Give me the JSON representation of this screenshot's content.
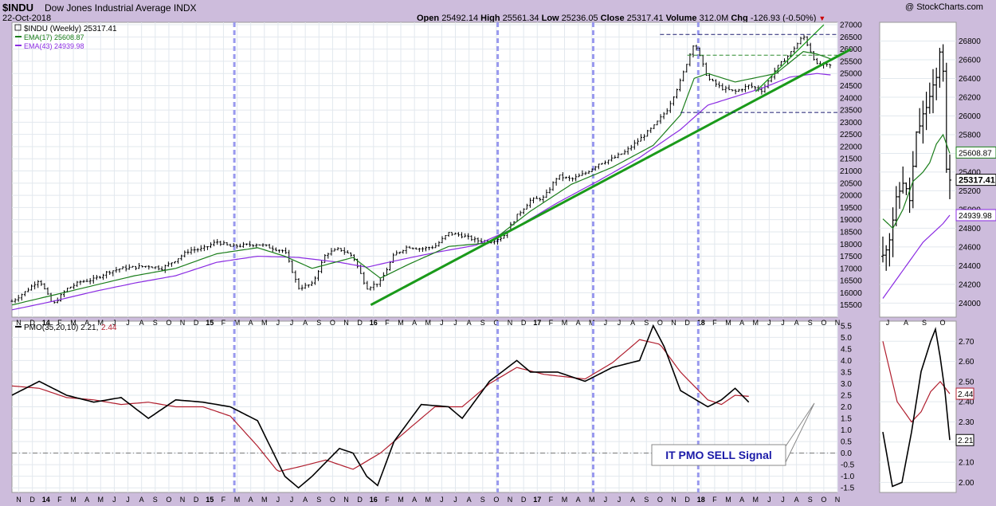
{
  "header": {
    "symbol": "$INDU",
    "name": "Dow Jones Industrial Average",
    "exchange": "INDX",
    "date": "22-Oct-2018",
    "copyright": "@ StockCharts.com",
    "ohlc": {
      "open_label": "Open",
      "open": "25492.14",
      "high_label": "High",
      "high": "25561.34",
      "low_label": "Low",
      "low": "25236.05",
      "close_label": "Close",
      "close": "25317.41",
      "volume_label": "Volume",
      "volume": "312.0M",
      "chg_label": "Chg",
      "chg": "-126.93 (-0.50%)"
    }
  },
  "colors": {
    "background": "#cdbcdc",
    "panel": "#ffffff",
    "ema17": "#1a7d1a",
    "ema43": "#8a2be2",
    "trend": "#1a9a1a",
    "pmo": "#000000",
    "pmo_signal": "#b01e2e",
    "vline": "#9999ee",
    "resistance": "#1a1a6e",
    "green_dash": "#2e8b2e",
    "callout_text": "#1a1aa8",
    "chg_marker": "#cc0000"
  },
  "chart_data": [
    {
      "type": "line",
      "title": "$INDU (Weekly) 25317.41",
      "ylim": [
        15000,
        27100
      ],
      "y_ticks": [
        15500,
        16000,
        16500,
        17000,
        17500,
        18000,
        18500,
        19000,
        19500,
        20000,
        20500,
        21000,
        21500,
        22000,
        22500,
        23000,
        23500,
        24000,
        24500,
        25000,
        25500,
        26000,
        26500,
        27000
      ],
      "x_ticks": [
        "N",
        "D",
        "14",
        "F",
        "M",
        "A",
        "M",
        "J",
        "J",
        "A",
        "S",
        "O",
        "N",
        "D",
        "15",
        "F",
        "M",
        "A",
        "M",
        "J",
        "J",
        "A",
        "S",
        "O",
        "N",
        "D",
        "16",
        "F",
        "M",
        "A",
        "M",
        "J",
        "J",
        "A",
        "S",
        "O",
        "N",
        "D",
        "17",
        "F",
        "M",
        "A",
        "M",
        "J",
        "J",
        "A",
        "S",
        "O",
        "N",
        "D",
        "18",
        "F",
        "M",
        "A",
        "M",
        "J",
        "J",
        "A",
        "S",
        "O",
        "N"
      ],
      "x_start": 0,
      "x_end": 60.5,
      "legend": [
        {
          "label": "$INDU (Weekly) 25317.41",
          "color": "#000000"
        },
        {
          "label": "EMA(17) 25608.87",
          "color": "#1a7d1a"
        },
        {
          "label": "EMA(43) 24939.98",
          "color": "#8a2be2"
        }
      ],
      "price_key": [
        [
          0,
          15650
        ],
        [
          1,
          16050
        ],
        [
          2,
          16550
        ],
        [
          3,
          15500
        ],
        [
          4,
          16150
        ],
        [
          5,
          16450
        ],
        [
          6,
          16550
        ],
        [
          7,
          16850
        ],
        [
          8,
          17000
        ],
        [
          9,
          17050
        ],
        [
          10,
          17100
        ],
        [
          11,
          17000
        ],
        [
          12,
          17350
        ],
        [
          13,
          17750
        ],
        [
          14,
          17800
        ],
        [
          15,
          18100
        ],
        [
          16,
          17900
        ],
        [
          17,
          17950
        ],
        [
          18,
          18000
        ],
        [
          19,
          17850
        ],
        [
          20,
          17700
        ],
        [
          21,
          16200
        ],
        [
          22,
          16350
        ],
        [
          23,
          17600
        ],
        [
          24,
          17800
        ],
        [
          25,
          17500
        ],
        [
          26,
          16200
        ],
        [
          27,
          16450
        ],
        [
          28,
          17550
        ],
        [
          29,
          17900
        ],
        [
          30,
          17800
        ],
        [
          31,
          17900
        ],
        [
          32,
          18450
        ],
        [
          33,
          18350
        ],
        [
          34,
          18150
        ],
        [
          35,
          18100
        ],
        [
          36,
          18300
        ],
        [
          37,
          19150
        ],
        [
          38,
          19800
        ],
        [
          39,
          19900
        ],
        [
          40,
          20800
        ],
        [
          41,
          20650
        ],
        [
          42,
          20900
        ],
        [
          43,
          21300
        ],
        [
          44,
          21500
        ],
        [
          45,
          21800
        ],
        [
          46,
          22300
        ],
        [
          47,
          22800
        ],
        [
          48,
          23500
        ],
        [
          49,
          24700
        ],
        [
          50,
          26300
        ],
        [
          51,
          24800
        ],
        [
          52,
          24400
        ],
        [
          53,
          24250
        ],
        [
          54,
          24500
        ],
        [
          55,
          24300
        ],
        [
          56,
          25200
        ],
        [
          57,
          25800
        ],
        [
          58,
          26550
        ],
        [
          59,
          25350
        ],
        [
          60,
          25320
        ]
      ],
      "ema17_key": [
        [
          0,
          15500
        ],
        [
          3,
          15900
        ],
        [
          6,
          16300
        ],
        [
          9,
          16700
        ],
        [
          12,
          17000
        ],
        [
          15,
          17600
        ],
        [
          18,
          17850
        ],
        [
          20,
          17500
        ],
        [
          22,
          17000
        ],
        [
          25,
          17450
        ],
        [
          27,
          16600
        ],
        [
          29,
          17150
        ],
        [
          32,
          17900
        ],
        [
          35,
          18050
        ],
        [
          38,
          19350
        ],
        [
          41,
          20450
        ],
        [
          44,
          21150
        ],
        [
          47,
          22050
        ],
        [
          49,
          23300
        ],
        [
          50,
          24800
        ],
        [
          51,
          25000
        ],
        [
          53,
          24650
        ],
        [
          56,
          25000
        ],
        [
          58,
          25900
        ],
        [
          59,
          25800
        ],
        [
          60,
          25600
        ]
      ],
      "ema43_key": [
        [
          0,
          15300
        ],
        [
          3,
          15650
        ],
        [
          6,
          16050
        ],
        [
          9,
          16400
        ],
        [
          12,
          16700
        ],
        [
          15,
          17250
        ],
        [
          18,
          17500
        ],
        [
          21,
          17450
        ],
        [
          24,
          17250
        ],
        [
          26,
          17050
        ],
        [
          28,
          17300
        ],
        [
          31,
          17650
        ],
        [
          34,
          17950
        ],
        [
          37,
          18700
        ],
        [
          40,
          19700
        ],
        [
          43,
          20600
        ],
        [
          46,
          21550
        ],
        [
          49,
          22700
        ],
        [
          51,
          23700
        ],
        [
          53,
          24050
        ],
        [
          55,
          24400
        ],
        [
          57,
          24850
        ],
        [
          59,
          25000
        ],
        [
          60,
          24940
        ]
      ],
      "annotations": {
        "trend_line": [
          [
            26.3,
            15500
          ],
          [
            61.5,
            26000
          ]
        ],
        "steep_trend": [
          [
            54.5,
            24250
          ],
          [
            59.5,
            27000
          ]
        ],
        "resistance_top": {
          "y": 26600,
          "x": [
            47.5,
            60.5
          ]
        },
        "green_dash": {
          "y": 25750,
          "x": [
            49.5,
            60.5
          ]
        },
        "support": {
          "y": 23400,
          "x": [
            49,
            60.5
          ]
        },
        "vlines": [
          16.3,
          35.6,
          42.6,
          50.3
        ]
      }
    },
    {
      "type": "line",
      "title": "PMO(35,20,10) 2.21, 2.44",
      "legend": [
        {
          "label": "PMO(35,20,10) 2.21,",
          "color": "#000000"
        },
        {
          "label": "2.44",
          "color": "#b01e2e"
        }
      ],
      "ylim": [
        -1.7,
        5.7
      ],
      "y_ticks": [
        -1.5,
        -1.0,
        -0.5,
        0.0,
        0.5,
        1.0,
        1.5,
        2.0,
        2.5,
        3.0,
        3.5,
        4.0,
        4.5,
        5.0,
        5.5
      ],
      "zero_line": 0,
      "pmo_key": [
        [
          0,
          2.5
        ],
        [
          2,
          3.1
        ],
        [
          4,
          2.5
        ],
        [
          6,
          2.2
        ],
        [
          8,
          2.4
        ],
        [
          10,
          1.5
        ],
        [
          12,
          2.3
        ],
        [
          14,
          2.2
        ],
        [
          16,
          2.0
        ],
        [
          18,
          1.4
        ],
        [
          20,
          -1.0
        ],
        [
          21,
          -1.5
        ],
        [
          22,
          -1.0
        ],
        [
          24,
          0.2
        ],
        [
          25,
          0.0
        ],
        [
          26,
          -1.0
        ],
        [
          26.8,
          -1.4
        ],
        [
          28,
          0.5
        ],
        [
          30,
          2.1
        ],
        [
          32,
          2.0
        ],
        [
          33,
          1.5
        ],
        [
          35,
          3.1
        ],
        [
          37,
          4.0
        ],
        [
          38,
          3.5
        ],
        [
          40,
          3.5
        ],
        [
          42,
          3.1
        ],
        [
          44,
          3.7
        ],
        [
          46,
          4.0
        ],
        [
          47,
          5.5
        ],
        [
          47.8,
          4.6
        ],
        [
          49,
          2.7
        ],
        [
          51,
          2.0
        ],
        [
          52,
          2.3
        ],
        [
          53,
          2.8
        ],
        [
          54,
          2.2
        ]
      ],
      "signal_key": [
        [
          0,
          2.9
        ],
        [
          2,
          2.8
        ],
        [
          4,
          2.4
        ],
        [
          6,
          2.3
        ],
        [
          8,
          2.1
        ],
        [
          10,
          2.2
        ],
        [
          12,
          2.0
        ],
        [
          14,
          2.0
        ],
        [
          16,
          1.6
        ],
        [
          18,
          0.3
        ],
        [
          19.5,
          -0.8
        ],
        [
          21,
          -0.6
        ],
        [
          23,
          -0.3
        ],
        [
          25,
          -0.7
        ],
        [
          27,
          0.0
        ],
        [
          29,
          1.0
        ],
        [
          31,
          2.0
        ],
        [
          33,
          2.0
        ],
        [
          35,
          3.0
        ],
        [
          37,
          3.7
        ],
        [
          39,
          3.4
        ],
        [
          42,
          3.2
        ],
        [
          44,
          3.9
        ],
        [
          46,
          4.9
        ],
        [
          47.5,
          4.7
        ],
        [
          49,
          3.5
        ],
        [
          51,
          2.3
        ],
        [
          52,
          2.1
        ],
        [
          53,
          2.5
        ],
        [
          54,
          2.45
        ]
      ],
      "callout": "IT PMO SELL Signal",
      "vlines": [
        16.3,
        35.6,
        42.6,
        50.3
      ]
    },
    {
      "type": "line",
      "title": "",
      "ylim": [
        23850,
        27000
      ],
      "y_ticks": [
        24000,
        24200,
        24400,
        24600,
        24800,
        25000,
        25200,
        25400,
        25600,
        25800,
        26000,
        26200,
        26400,
        26600,
        26800
      ],
      "x_ticks": [
        "J",
        "A",
        "S",
        "O"
      ],
      "price_labels": {
        "ema17": "25608.87",
        "close": "25317.41",
        "ema43": "24939.98"
      },
      "close_marker": 25317.41,
      "ema17_marker": 25608.87,
      "ema43_marker": 24939.98,
      "price_key": [
        [
          0,
          24500
        ],
        [
          2,
          24700
        ],
        [
          4,
          25100
        ],
        [
          6,
          25300
        ],
        [
          8,
          25100
        ],
        [
          10,
          25800
        ],
        [
          12,
          26000
        ],
        [
          14,
          26200
        ],
        [
          16,
          26400
        ],
        [
          17,
          26700
        ],
        [
          18,
          26500
        ],
        [
          19,
          25400
        ],
        [
          20,
          25300
        ]
      ],
      "ema17_key": [
        [
          0,
          24900
        ],
        [
          3,
          24800
        ],
        [
          6,
          25000
        ],
        [
          9,
          25300
        ],
        [
          12,
          25400
        ],
        [
          14,
          25500
        ],
        [
          16,
          25700
        ],
        [
          18,
          25800
        ],
        [
          20,
          25600
        ]
      ],
      "ema43_key": [
        [
          0,
          24050
        ],
        [
          3,
          24200
        ],
        [
          6,
          24350
        ],
        [
          9,
          24500
        ],
        [
          12,
          24650
        ],
        [
          15,
          24750
        ],
        [
          18,
          24850
        ],
        [
          20,
          24940
        ]
      ]
    },
    {
      "type": "line",
      "title": "",
      "ylim": [
        1.95,
        2.8
      ],
      "y_ticks": [
        2.0,
        2.1,
        2.2,
        2.3,
        2.4,
        2.5,
        2.6,
        2.7
      ],
      "price_labels": {
        "signal": "2.44",
        "pmo": "2.21"
      },
      "pmo_marker": 2.21,
      "signal_marker": 2.44,
      "pmo_key": [
        [
          0,
          2.25
        ],
        [
          2,
          1.98
        ],
        [
          4,
          2.0
        ],
        [
          6,
          2.25
        ],
        [
          8,
          2.55
        ],
        [
          10,
          2.7
        ],
        [
          11,
          2.76
        ],
        [
          12,
          2.62
        ],
        [
          13,
          2.45
        ],
        [
          14,
          2.21
        ]
      ],
      "signal_key": [
        [
          0,
          2.7
        ],
        [
          3,
          2.4
        ],
        [
          6,
          2.3
        ],
        [
          8,
          2.35
        ],
        [
          10,
          2.45
        ],
        [
          12,
          2.5
        ],
        [
          14,
          2.44
        ]
      ]
    }
  ]
}
